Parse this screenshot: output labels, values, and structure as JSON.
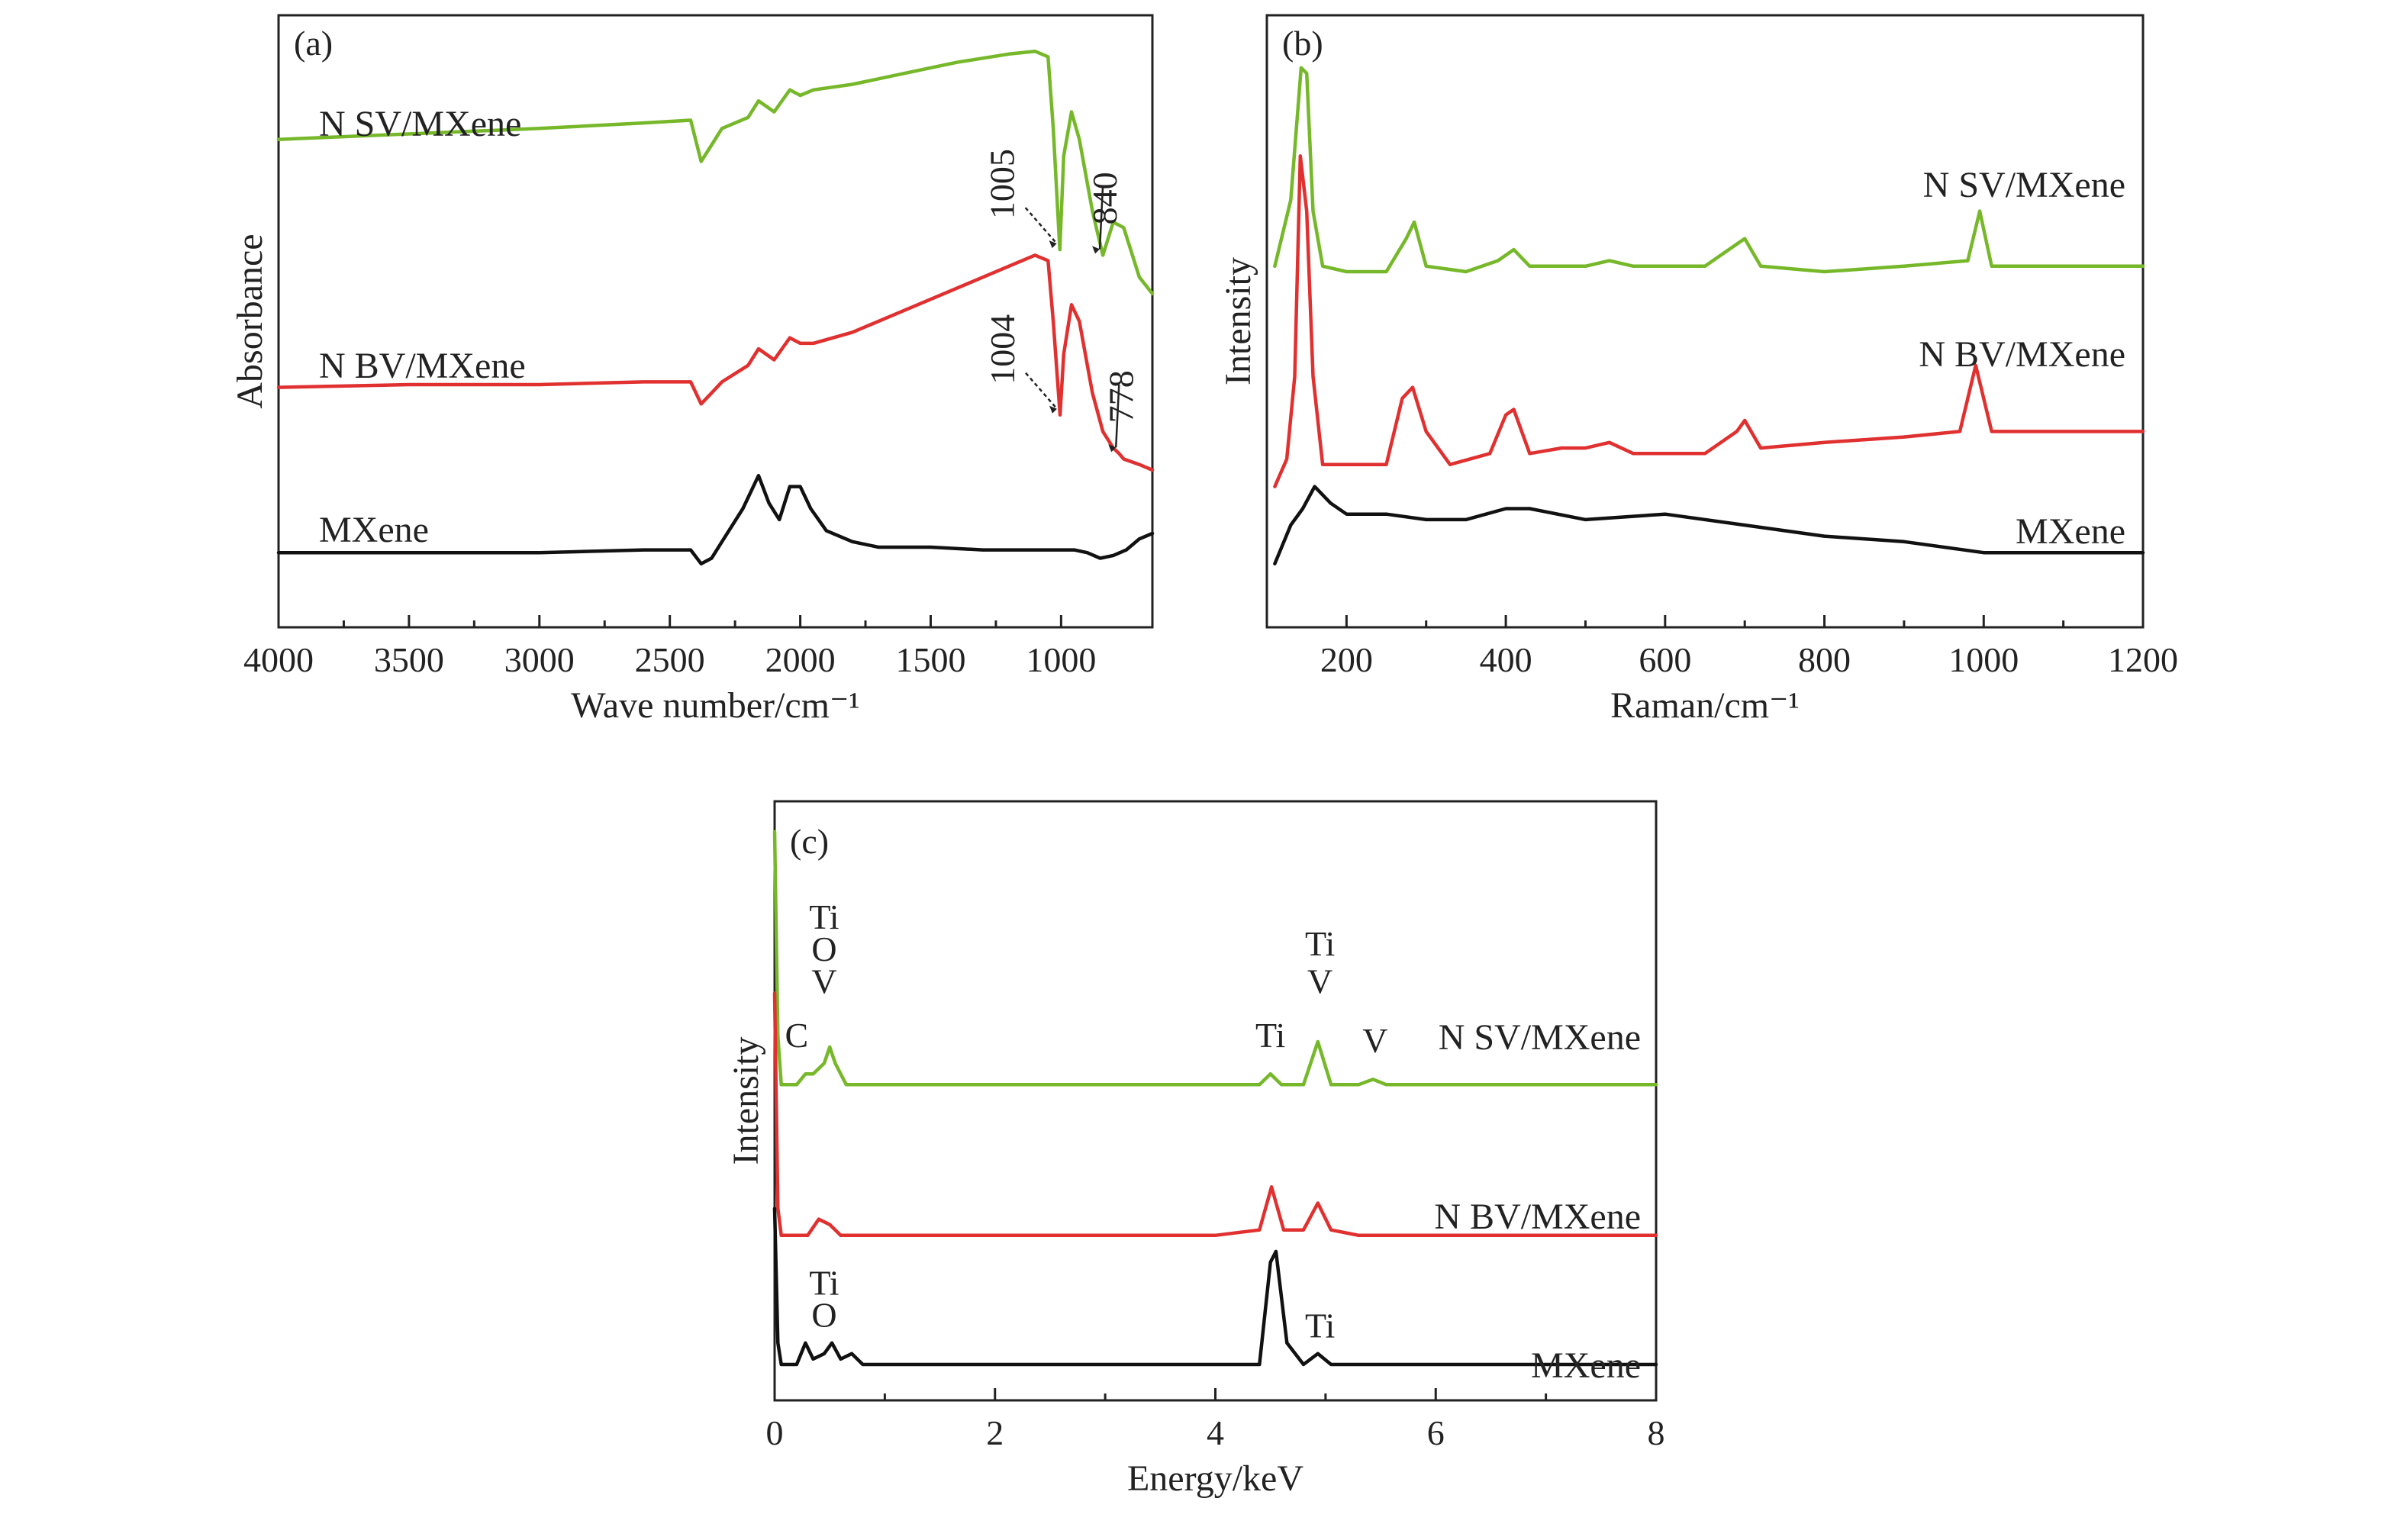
{
  "colors": {
    "N SV/MXene": "#76b82a",
    "N BV/MXene": "#e03030",
    "MXene": "#111111"
  },
  "chart_data": [
    {
      "panel": "(a)",
      "type": "line",
      "xlabel": "Wave number/cm⁻¹",
      "ylabel": "Absorbance",
      "xlim": [
        4000,
        650
      ],
      "x_reversed": true,
      "xticks": [
        4000,
        3500,
        3000,
        2500,
        2000,
        1500,
        1000
      ],
      "ylim": [
        0,
        1
      ],
      "yticks": [],
      "series": [
        {
          "name": "N SV/MXene",
          "label": "N SV/MXene",
          "x": [
            4000,
            3500,
            3000,
            2600,
            2420,
            2380,
            2340,
            2300,
            2200,
            2160,
            2100,
            2040,
            2000,
            1950,
            1800,
            1600,
            1400,
            1200,
            1100,
            1050,
            1030,
            1005,
            990,
            960,
            930,
            880,
            840,
            800,
            760,
            700,
            650
          ],
          "y": [
            0.83,
            0.84,
            0.85,
            0.86,
            0.865,
            0.79,
            0.82,
            0.85,
            0.87,
            0.9,
            0.88,
            0.92,
            0.91,
            0.92,
            0.93,
            0.95,
            0.97,
            0.985,
            0.99,
            0.98,
            0.85,
            0.63,
            0.8,
            0.88,
            0.83,
            0.7,
            0.62,
            0.68,
            0.67,
            0.58,
            0.55
          ]
        },
        {
          "name": "N BV/MXene",
          "label": "N BV/MXene",
          "x": [
            4000,
            3500,
            3000,
            2600,
            2420,
            2380,
            2340,
            2300,
            2200,
            2160,
            2100,
            2040,
            2000,
            1950,
            1800,
            1600,
            1400,
            1200,
            1100,
            1050,
            1030,
            1004,
            990,
            960,
            930,
            880,
            840,
            800,
            778,
            760,
            700,
            650
          ],
          "y": [
            0.38,
            0.385,
            0.385,
            0.39,
            0.39,
            0.35,
            0.37,
            0.39,
            0.42,
            0.45,
            0.43,
            0.47,
            0.46,
            0.46,
            0.48,
            0.52,
            0.56,
            0.6,
            0.62,
            0.61,
            0.5,
            0.33,
            0.44,
            0.53,
            0.5,
            0.37,
            0.3,
            0.27,
            0.26,
            0.25,
            0.24,
            0.23
          ]
        },
        {
          "name": "MXene",
          "label": "MXene",
          "x": [
            4000,
            3500,
            3000,
            2600,
            2420,
            2380,
            2340,
            2300,
            2220,
            2160,
            2120,
            2080,
            2040,
            2000,
            1960,
            1900,
            1800,
            1700,
            1500,
            1300,
            1100,
            950,
            900,
            850,
            800,
            750,
            700,
            650
          ],
          "y": [
            0.08,
            0.08,
            0.08,
            0.085,
            0.085,
            0.06,
            0.07,
            0.1,
            0.16,
            0.22,
            0.17,
            0.14,
            0.2,
            0.2,
            0.16,
            0.12,
            0.1,
            0.09,
            0.09,
            0.085,
            0.085,
            0.085,
            0.08,
            0.07,
            0.075,
            0.085,
            0.105,
            0.115
          ]
        }
      ],
      "annotations": [
        {
          "text": "1005",
          "x": 1005,
          "y": 0.63
        },
        {
          "text": "840",
          "x": 840,
          "y": 0.62
        },
        {
          "text": "1004",
          "x": 1004,
          "y": 0.33
        },
        {
          "text": "778",
          "x": 778,
          "y": 0.26
        }
      ]
    },
    {
      "panel": "(b)",
      "type": "line",
      "xlabel": "Raman/cm⁻¹",
      "ylabel": "Intensity",
      "xlim": [
        100,
        1200
      ],
      "xticks": [
        200,
        400,
        600,
        800,
        1000,
        1200
      ],
      "ylim": [
        0,
        1
      ],
      "yticks": [],
      "series": [
        {
          "name": "N SV/MXene",
          "label": "N SV/MXene",
          "x": [
            110,
            130,
            143,
            150,
            158,
            170,
            200,
            250,
            275,
            285,
            300,
            350,
            390,
            410,
            430,
            470,
            500,
            530,
            560,
            650,
            690,
            700,
            720,
            800,
            900,
            980,
            995,
            1010,
            1100,
            1200
          ],
          "y": [
            0.6,
            0.72,
            0.96,
            0.95,
            0.7,
            0.6,
            0.59,
            0.59,
            0.65,
            0.68,
            0.6,
            0.59,
            0.61,
            0.63,
            0.6,
            0.6,
            0.6,
            0.61,
            0.6,
            0.6,
            0.64,
            0.65,
            0.6,
            0.59,
            0.6,
            0.61,
            0.7,
            0.6,
            0.6,
            0.6
          ]
        },
        {
          "name": "N BV/MXene",
          "label": "N BV/MXene",
          "x": [
            110,
            125,
            135,
            142,
            150,
            158,
            170,
            200,
            250,
            270,
            283,
            300,
            330,
            380,
            400,
            410,
            430,
            470,
            500,
            530,
            560,
            650,
            690,
            700,
            720,
            800,
            900,
            970,
            990,
            1010,
            1100,
            1200
          ],
          "y": [
            0.2,
            0.25,
            0.4,
            0.8,
            0.7,
            0.4,
            0.24,
            0.24,
            0.24,
            0.36,
            0.38,
            0.3,
            0.24,
            0.26,
            0.33,
            0.34,
            0.26,
            0.27,
            0.27,
            0.28,
            0.26,
            0.26,
            0.3,
            0.32,
            0.27,
            0.28,
            0.29,
            0.3,
            0.42,
            0.3,
            0.3,
            0.3
          ]
        },
        {
          "name": "MXene",
          "label": "MXene",
          "x": [
            110,
            130,
            145,
            160,
            180,
            200,
            250,
            300,
            350,
            400,
            430,
            500,
            600,
            700,
            800,
            900,
            1000,
            1100,
            1200
          ],
          "y": [
            0.06,
            0.13,
            0.16,
            0.2,
            0.17,
            0.15,
            0.15,
            0.14,
            0.14,
            0.16,
            0.16,
            0.14,
            0.15,
            0.13,
            0.11,
            0.1,
            0.08,
            0.08,
            0.08
          ]
        }
      ],
      "labels_printed": [
        "N SV/MXene",
        "N BV/MXene",
        "MXene"
      ]
    },
    {
      "panel": "(c)",
      "type": "line",
      "xlabel": "Energy/keV",
      "ylabel": "Intensity",
      "xlim": [
        0,
        8
      ],
      "xticks": [
        0,
        2,
        4,
        6,
        8
      ],
      "ylim": [
        0,
        1
      ],
      "yticks": [],
      "series": [
        {
          "name": "N SV/MXene",
          "label": "N SV/MXene",
          "x": [
            0.0,
            0.03,
            0.06,
            0.12,
            0.2,
            0.28,
            0.35,
            0.45,
            0.5,
            0.55,
            0.65,
            1.0,
            2.0,
            3.0,
            4.0,
            4.4,
            4.5,
            4.6,
            4.8,
            4.93,
            5.05,
            5.3,
            5.43,
            5.55,
            6.0,
            7.0,
            8.0
          ],
          "y": [
            1.0,
            0.62,
            0.53,
            0.53,
            0.53,
            0.55,
            0.55,
            0.57,
            0.6,
            0.57,
            0.53,
            0.53,
            0.53,
            0.53,
            0.53,
            0.53,
            0.55,
            0.53,
            0.53,
            0.61,
            0.53,
            0.53,
            0.54,
            0.53,
            0.53,
            0.53,
            0.53
          ]
        },
        {
          "name": "N BV/MXene",
          "label": "N BV/MXene",
          "x": [
            0.0,
            0.03,
            0.06,
            0.12,
            0.2,
            0.3,
            0.4,
            0.5,
            0.6,
            1.0,
            2.0,
            3.0,
            4.0,
            4.4,
            4.51,
            4.62,
            4.8,
            4.93,
            5.05,
            5.3,
            6.0,
            7.0,
            8.0
          ],
          "y": [
            0.7,
            0.3,
            0.25,
            0.25,
            0.25,
            0.25,
            0.28,
            0.27,
            0.25,
            0.25,
            0.25,
            0.25,
            0.25,
            0.26,
            0.34,
            0.26,
            0.26,
            0.31,
            0.26,
            0.25,
            0.25,
            0.25,
            0.25
          ]
        },
        {
          "name": "MXene",
          "label": "MXene",
          "x": [
            0.0,
            0.03,
            0.06,
            0.1,
            0.2,
            0.28,
            0.35,
            0.45,
            0.52,
            0.6,
            0.7,
            0.8,
            1.0,
            2.0,
            3.0,
            4.0,
            4.4,
            4.5,
            4.55,
            4.65,
            4.8,
            4.93,
            5.05,
            5.3,
            6.0,
            7.0,
            8.0
          ],
          "y": [
            0.3,
            0.05,
            0.01,
            0.01,
            0.01,
            0.05,
            0.02,
            0.03,
            0.05,
            0.02,
            0.03,
            0.01,
            0.01,
            0.01,
            0.01,
            0.01,
            0.01,
            0.2,
            0.22,
            0.05,
            0.01,
            0.03,
            0.01,
            0.01,
            0.01,
            0.01,
            0.01
          ]
        }
      ],
      "annotations": [
        {
          "text": "Ti",
          "x": 0.45,
          "y": 0.82,
          "series": "N SV/MXene"
        },
        {
          "text": "O",
          "x": 0.45,
          "y": 0.76,
          "series": "N SV/MXene"
        },
        {
          "text": "V",
          "x": 0.45,
          "y": 0.7,
          "series": "N SV/MXene"
        },
        {
          "text": "C",
          "x": 0.2,
          "y": 0.6,
          "series": "N SV/MXene"
        },
        {
          "text": "Ti",
          "x": 4.5,
          "y": 0.6,
          "series": "N SV/MXene"
        },
        {
          "text": "Ti",
          "x": 4.95,
          "y": 0.77,
          "series": "N SV/MXene"
        },
        {
          "text": "V",
          "x": 4.95,
          "y": 0.7,
          "series": "N SV/MXene"
        },
        {
          "text": "V",
          "x": 5.45,
          "y": 0.59,
          "series": "N SV/MXene"
        },
        {
          "text": "Ti",
          "x": 0.45,
          "y": 0.14,
          "series": "MXene"
        },
        {
          "text": "O",
          "x": 0.45,
          "y": 0.08,
          "series": "MXene"
        },
        {
          "text": "Ti",
          "x": 4.95,
          "y": 0.06,
          "series": "MXene"
        }
      ]
    }
  ]
}
